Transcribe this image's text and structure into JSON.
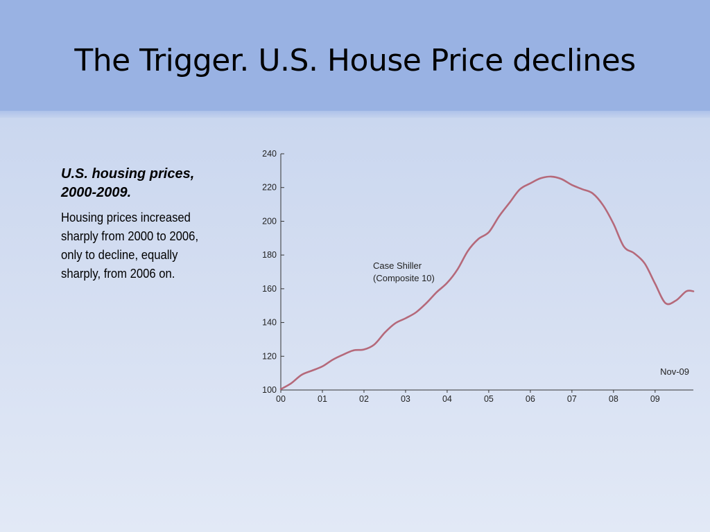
{
  "slide": {
    "title": "The Trigger. U.S. House Price declines",
    "caption_heading_line1": "U.S. housing prices,",
    "caption_heading_line2": "2000-2009.",
    "caption_body_lines": [
      "Housing prices increased",
      "sharply from 2000 to 2006,",
      "only to decline, equally",
      "sharply, from 2006 on."
    ]
  },
  "chart_data": {
    "type": "line",
    "title": "",
    "xlabel": "",
    "ylabel": "",
    "x_tick_labels": [
      "00",
      "01",
      "02",
      "03",
      "04",
      "05",
      "06",
      "07",
      "08",
      "09"
    ],
    "y_ticks": [
      100,
      120,
      140,
      160,
      180,
      200,
      220,
      240
    ],
    "xlim": [
      2000,
      2009.92
    ],
    "ylim": [
      100,
      240
    ],
    "grid": false,
    "line_color": "#b5697a",
    "annotations": {
      "series_label_line1": "Case Shiller",
      "series_label_line2": "(Composite 10)",
      "end_label": "Nov-09"
    },
    "series": [
      {
        "name": "Case Shiller (Composite 10)",
        "x": [
          2000.0,
          2000.25,
          2000.5,
          2000.75,
          2001.0,
          2001.25,
          2001.5,
          2001.75,
          2002.0,
          2002.25,
          2002.5,
          2002.75,
          2003.0,
          2003.25,
          2003.5,
          2003.75,
          2004.0,
          2004.25,
          2004.5,
          2004.75,
          2005.0,
          2005.25,
          2005.5,
          2005.75,
          2006.0,
          2006.25,
          2006.5,
          2006.75,
          2007.0,
          2007.25,
          2007.5,
          2007.75,
          2008.0,
          2008.25,
          2008.5,
          2008.75,
          2009.0,
          2009.25,
          2009.5,
          2009.75,
          2009.92
        ],
        "y": [
          100.5,
          104,
          109,
          111.5,
          114,
          118,
          121,
          123.5,
          124,
          127,
          134,
          139.5,
          142.5,
          146,
          151.5,
          158,
          163.5,
          171.5,
          182.5,
          189.5,
          193.5,
          203,
          211,
          219,
          222.5,
          225.5,
          226.5,
          225,
          221.5,
          219,
          216.5,
          209.5,
          198.5,
          185,
          181,
          175,
          163,
          151.5,
          153,
          158.5,
          158.5
        ]
      }
    ]
  }
}
